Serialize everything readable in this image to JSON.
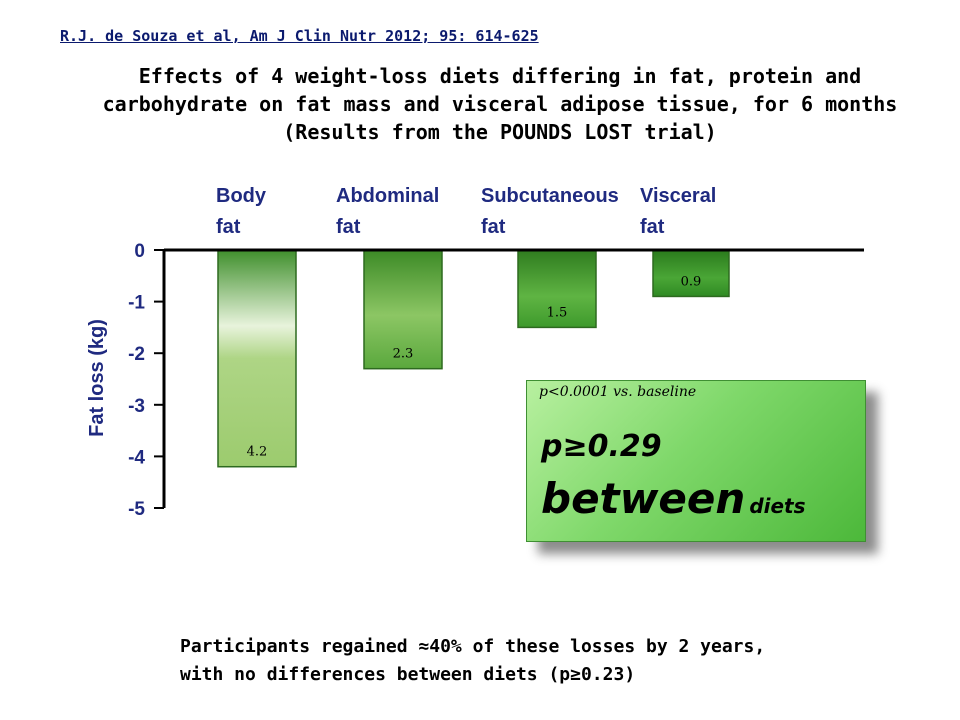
{
  "citation": "R.J. de Souza et al, Am J Clin Nutr 2012; 95: 614-625",
  "title_lines": [
    "Effects of 4 weight-loss diets differing in fat, protein and",
    "carbohydrate on fat mass and visceral adipose tissue, for 6 months",
    "(Results from the POUNDS LOST trial)"
  ],
  "chart_data": {
    "type": "bar",
    "categories": [
      "Body fat",
      "Abdominal fat",
      "Subcutaneous fat",
      "Visceral fat"
    ],
    "category_lines": [
      [
        "Body",
        "fat"
      ],
      [
        "Abdominal",
        "fat"
      ],
      [
        "Subcutaneous",
        "fat"
      ],
      [
        "Visceral",
        "fat"
      ]
    ],
    "values": [
      -4.2,
      -2.3,
      -1.5,
      -0.9
    ],
    "data_labels": [
      "4.2",
      "2.3",
      "1.5",
      "0.9"
    ],
    "ylabel": "Fat loss (kg)",
    "ylim": [
      -5,
      0
    ],
    "yticks": [
      0,
      -1,
      -2,
      -3,
      -4,
      -5
    ],
    "ytick_labels": [
      "0",
      "-1",
      "-2",
      "-3",
      "-4",
      "-5"
    ],
    "grid": false,
    "axis_color": "#000000",
    "label_color": "#1f2a80",
    "bar_colors": [
      "#8fc75e",
      "#4f9a34",
      "#3c8e2a",
      "#2f8a23"
    ]
  },
  "stat_box": {
    "note": "p<0.0001 vs. baseline",
    "main": "p≥0.29",
    "between": "between",
    "diets": "diets"
  },
  "footnote_lines": [
    "Participants regained ≈40% of these losses by 2 years,",
    "with no differences between diets (p≥0.23)"
  ]
}
